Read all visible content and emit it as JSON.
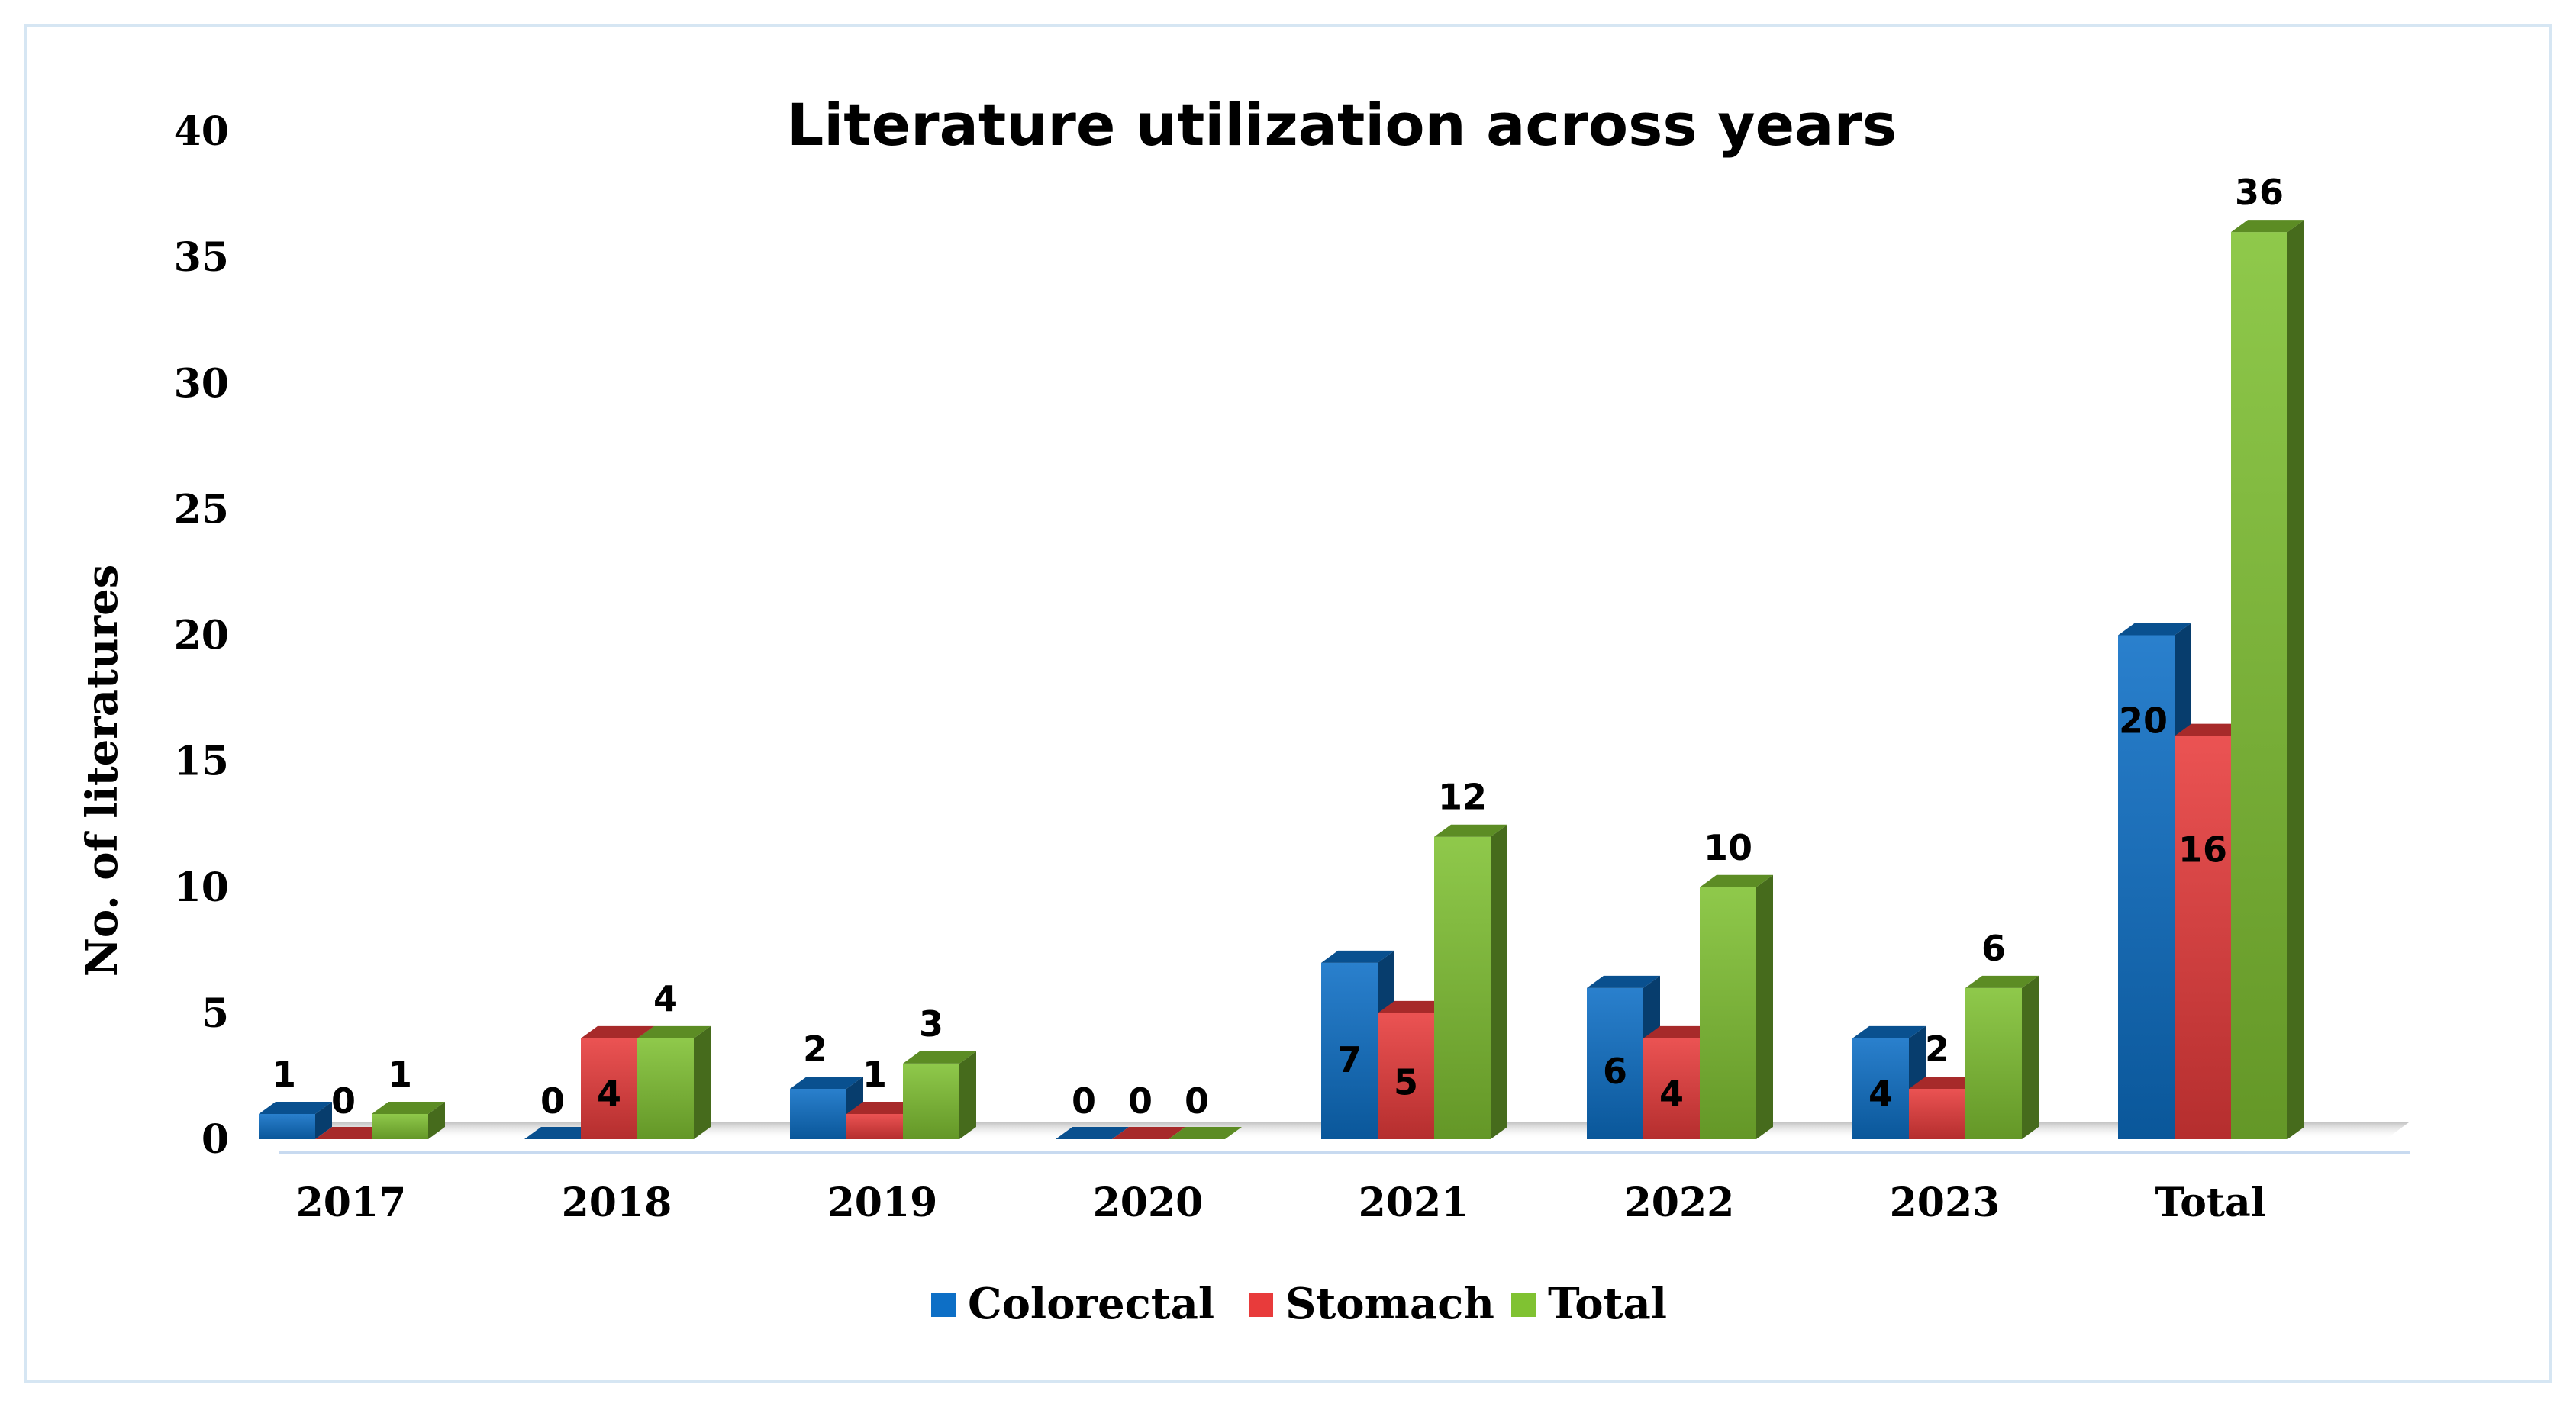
{
  "chart_data": {
    "type": "bar",
    "title": "Literature utilization across years",
    "xlabel": "",
    "ylabel": "No. of literatures",
    "ylim": [
      0,
      40
    ],
    "yticks": [
      0,
      5,
      10,
      15,
      20,
      25,
      30,
      35,
      40
    ],
    "categories": [
      "2017",
      "2018",
      "2019",
      "2020",
      "2021",
      "2022",
      "2023",
      "Total"
    ],
    "series": [
      {
        "name": "Colorectal",
        "color": "#0d6fc6",
        "values": [
          1,
          0,
          2,
          0,
          7,
          6,
          4,
          20
        ]
      },
      {
        "name": "Stomach",
        "color": "#e83b3b",
        "values": [
          0,
          4,
          1,
          0,
          5,
          4,
          2,
          16
        ]
      },
      {
        "name": "Total",
        "color": "#80c232",
        "values": [
          1,
          4,
          3,
          0,
          12,
          10,
          6,
          36
        ]
      }
    ],
    "legend_position": "bottom",
    "grid": false
  }
}
